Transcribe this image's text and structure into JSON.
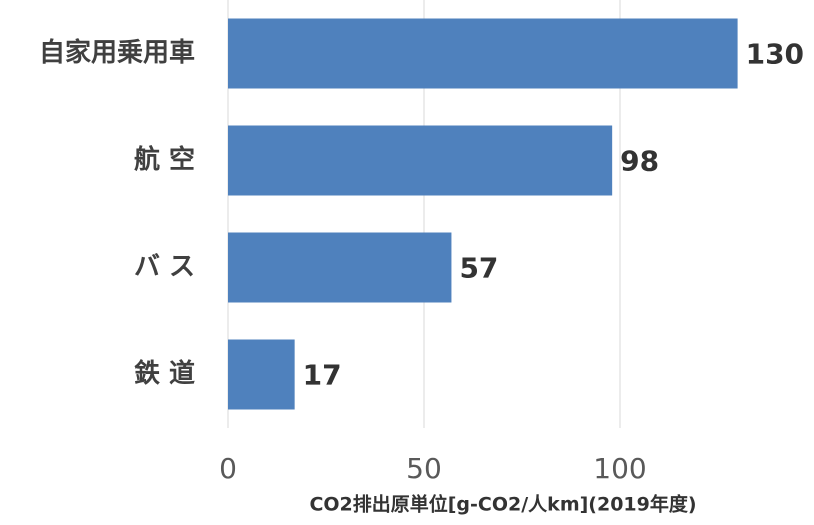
{
  "chart_data": {
    "type": "bar",
    "orientation": "horizontal",
    "categories": [
      "自家用乗用車",
      "航 空",
      "バ ス",
      "鉄 道"
    ],
    "values": [
      130,
      98,
      57,
      17
    ],
    "color": "#4f81bd",
    "xlim": [
      0,
      150
    ],
    "xticks": [
      0,
      50,
      100
    ],
    "grid": true,
    "xlabel": "CO2排出原単位[g-CO2/人km](2019年度)"
  }
}
